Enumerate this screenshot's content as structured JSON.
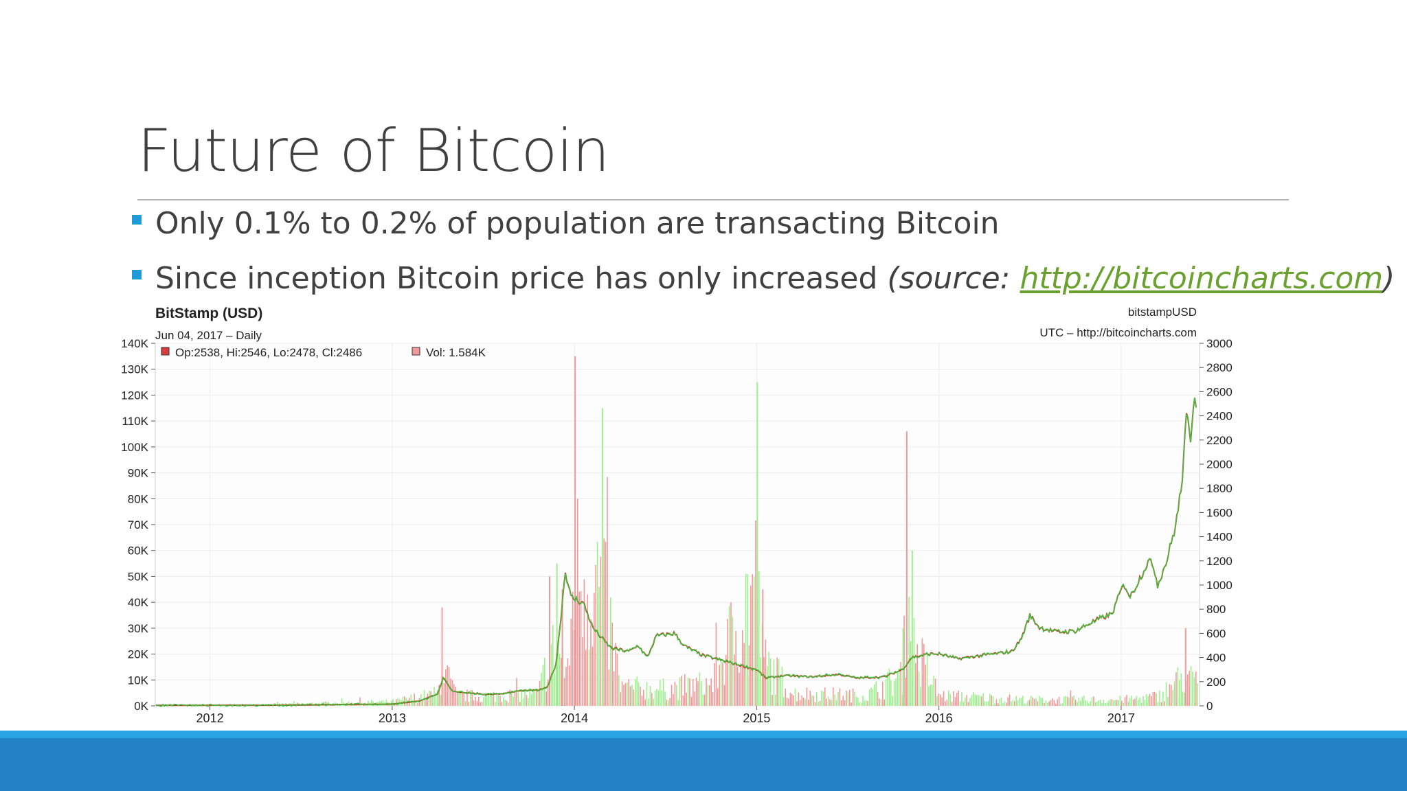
{
  "slide": {
    "title": "Future of Bitcoin",
    "bullets": [
      {
        "text": "Only 0.1% to 0.2% of population are transacting Bitcoin"
      },
      {
        "text": "Since inception Bitcoin price has only increased ",
        "source_prefix": "(source: ",
        "link": "http://bitcoincharts.com",
        "source_suffix": ")"
      }
    ]
  },
  "colors": {
    "accent": "#1f9bd7",
    "link": "#6aa12e",
    "footer": "#2381c5",
    "up": "#4cd93c",
    "down": "#d93c3c",
    "vol_up": "#9ef08e",
    "vol_down": "#f29a9a"
  },
  "chart_data": {
    "type": "line",
    "title": "BitStamp (USD)",
    "subtitle": "Jun 04, 2017 – Daily",
    "symbol": "bitstampUSD",
    "source": "UTC – http://bitcoincharts.com",
    "legend_ohlc": "Op:2538, Hi:2546, Lo:2478, Cl:2486",
    "legend_vol": "Vol: 1.584K",
    "x_ticks": [
      "2012",
      "2013",
      "2014",
      "2015",
      "2016",
      "2017"
    ],
    "left_axis_ticks": [
      "0K",
      "10K",
      "20K",
      "30K",
      "40K",
      "50K",
      "60K",
      "70K",
      "80K",
      "90K",
      "100K",
      "110K",
      "120K",
      "130K",
      "140K"
    ],
    "right_axis_ticks": [
      "0",
      "200",
      "400",
      "600",
      "800",
      "1000",
      "1200",
      "1400",
      "1600",
      "1800",
      "2000",
      "2200",
      "2400",
      "2600",
      "2800",
      "3000"
    ],
    "left_ylim": [
      0,
      140000
    ],
    "right_ylim": [
      0,
      3000
    ],
    "xlim": [
      2011.7,
      2017.43
    ],
    "grid": true,
    "price_series": {
      "name": "price",
      "x": [
        2011.7,
        2012.0,
        2012.3,
        2012.5,
        2012.7,
        2012.9,
        2013.0,
        2013.15,
        2013.25,
        2013.28,
        2013.33,
        2013.4,
        2013.5,
        2013.6,
        2013.7,
        2013.8,
        2013.85,
        2013.9,
        2013.93,
        2013.95,
        2013.98,
        2014.05,
        2014.1,
        2014.15,
        2014.2,
        2014.3,
        2014.35,
        2014.4,
        2014.45,
        2014.55,
        2014.6,
        2014.7,
        2014.8,
        2014.9,
        2015.0,
        2015.05,
        2015.15,
        2015.3,
        2015.45,
        2015.55,
        2015.7,
        2015.8,
        2015.85,
        2015.95,
        2016.0,
        2016.1,
        2016.2,
        2016.3,
        2016.4,
        2016.45,
        2016.5,
        2016.55,
        2016.65,
        2016.75,
        2016.85,
        2016.95,
        2017.0,
        2017.02,
        2017.05,
        2017.1,
        2017.15,
        2017.18,
        2017.2,
        2017.25,
        2017.3,
        2017.33,
        2017.36,
        2017.38,
        2017.4,
        2017.42
      ],
      "values": [
        4,
        5,
        5,
        7,
        11,
        13,
        14,
        40,
        100,
        230,
        120,
        110,
        95,
        100,
        125,
        130,
        150,
        350,
        800,
        1120,
        900,
        850,
        650,
        560,
        480,
        450,
        500,
        400,
        580,
        600,
        500,
        420,
        380,
        340,
        300,
        230,
        250,
        240,
        260,
        230,
        240,
        300,
        400,
        430,
        430,
        390,
        410,
        430,
        450,
        550,
        750,
        650,
        610,
        620,
        700,
        760,
        960,
        1000,
        900,
        1050,
        1200,
        1150,
        1000,
        1200,
        1500,
        1800,
        2400,
        2200,
        2600,
        2486
      ]
    },
    "volume_series": {
      "name": "Vol",
      "x": [
        2012.0,
        2012.5,
        2013.0,
        2013.25,
        2013.27,
        2013.35,
        2013.5,
        2013.8,
        2013.86,
        2013.9,
        2013.93,
        2013.96,
        2014.0,
        2014.15,
        2014.25,
        2014.5,
        2014.75,
        2015.0,
        2015.03,
        2015.2,
        2015.6,
        2015.8,
        2015.82,
        2015.85,
        2016.0,
        2016.5,
        2017.0,
        2017.2,
        2017.35,
        2017.4
      ],
      "values": [
        500,
        2000,
        4000,
        12000,
        38000,
        10000,
        9000,
        12000,
        50000,
        55000,
        45000,
        28000,
        135000,
        115000,
        18000,
        16000,
        22000,
        125000,
        45000,
        12000,
        10000,
        30000,
        106000,
        60000,
        10000,
        6000,
        6000,
        9000,
        30000,
        22000
      ]
    }
  }
}
